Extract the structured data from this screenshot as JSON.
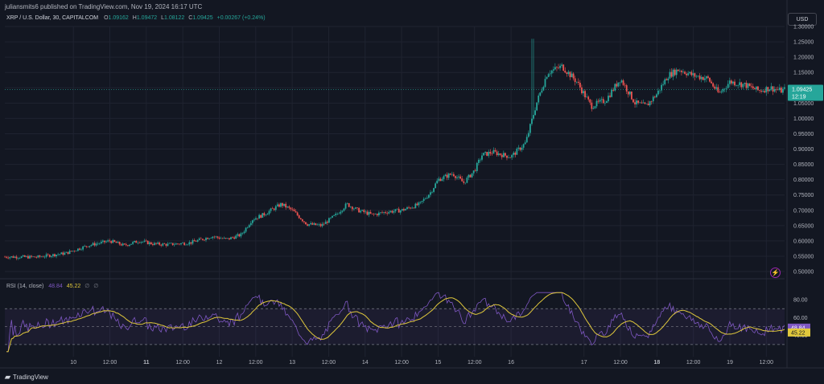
{
  "header": {
    "published": "juliansmits6 published on TradingView.com, Nov 19, 2024 16:17 UTC",
    "symbol": "XRP / U.S. Dollar, 30, CAPITALCOM",
    "open_label": "O",
    "open": "1.09162",
    "high_label": "H",
    "high": "1.09472",
    "low_label": "L",
    "low": "1.08122",
    "close_label": "C",
    "close": "1.09425",
    "change": "+0.00267 (+0.24%)",
    "currency": "USD"
  },
  "rsi": {
    "label": "RSI (14, close)",
    "value": "48.84",
    "ma_value": "45.22",
    "placeholder1": "∅",
    "placeholder2": "∅"
  },
  "footer": {
    "brand": "TradingView"
  },
  "icons": {
    "brand_icon": "tradingview-logo-icon",
    "flash_icon": "lightning-icon"
  },
  "colors": {
    "up": "#26a69a",
    "down": "#ef5350",
    "rsi": "#7e57c2",
    "rsi_ma": "#e0c83c",
    "price_tag": "#26a69a"
  },
  "chart_data": [
    {
      "type": "candlestick",
      "title": "",
      "ylim": [
        0.5,
        1.3
      ],
      "y_ticks": [
        "1.30000",
        "1.25000",
        "1.20000",
        "1.15000",
        "1.10000",
        "1.05000",
        "1.00000",
        "0.95000",
        "0.90000",
        "0.85000",
        "0.80000",
        "0.75000",
        "0.70000",
        "0.65000",
        "0.60000",
        "0.55000",
        "0.50000"
      ],
      "x_ticks": [
        {
          "label": "10",
          "t": 1
        },
        {
          "label": "12:00",
          "t": 1.5
        },
        {
          "label": "11",
          "t": 2
        },
        {
          "label": "12:00",
          "t": 2.5
        },
        {
          "label": "12",
          "t": 3
        },
        {
          "label": "12:00",
          "t": 3.5
        },
        {
          "label": "13",
          "t": 4
        },
        {
          "label": "12:00",
          "t": 4.5
        },
        {
          "label": "14",
          "t": 5
        },
        {
          "label": "12:00",
          "t": 5.5
        },
        {
          "label": "15",
          "t": 6
        },
        {
          "label": "12:00",
          "t": 6.5
        },
        {
          "label": "16",
          "t": 7
        },
        {
          "label": "17",
          "t": 8
        },
        {
          "label": "12:00",
          "t": 8.5
        },
        {
          "label": "18",
          "t": 9
        },
        {
          "label": "12:00",
          "t": 9.5
        },
        {
          "label": "19",
          "t": 10
        },
        {
          "label": "12:00",
          "t": 10.5
        }
      ],
      "t_range": [
        0.06,
        10.75
      ],
      "bold_ticks": [
        "11",
        "18"
      ],
      "last_price": "1.09425",
      "countdown": "12:19",
      "path": [
        [
          0.06,
          0.548
        ],
        [
          0.5,
          0.547
        ],
        [
          0.9,
          0.56
        ],
        [
          1.2,
          0.585
        ],
        [
          1.5,
          0.6
        ],
        [
          1.7,
          0.585
        ],
        [
          1.9,
          0.6
        ],
        [
          2.1,
          0.59
        ],
        [
          2.3,
          0.588
        ],
        [
          2.6,
          0.594
        ],
        [
          2.9,
          0.615
        ],
        [
          3.1,
          0.605
        ],
        [
          3.3,
          0.62
        ],
        [
          3.45,
          0.67
        ],
        [
          3.6,
          0.685
        ],
        [
          3.85,
          0.72
        ],
        [
          4.0,
          0.7
        ],
        [
          4.2,
          0.655
        ],
        [
          4.4,
          0.65
        ],
        [
          4.6,
          0.685
        ],
        [
          4.75,
          0.72
        ],
        [
          4.9,
          0.7
        ],
        [
          5.1,
          0.685
        ],
        [
          5.3,
          0.695
        ],
        [
          5.5,
          0.7
        ],
        [
          5.75,
          0.72
        ],
        [
          5.9,
          0.76
        ],
        [
          6.0,
          0.8
        ],
        [
          6.2,
          0.82
        ],
        [
          6.35,
          0.79
        ],
        [
          6.5,
          0.83
        ],
        [
          6.6,
          0.88
        ],
        [
          6.75,
          0.89
        ],
        [
          6.9,
          0.88
        ],
        [
          7.0,
          0.875
        ],
        [
          7.2,
          0.92
        ],
        [
          7.35,
          1.05
        ],
        [
          7.5,
          1.15
        ],
        [
          7.7,
          1.17
        ],
        [
          7.9,
          1.12
        ],
        [
          8.1,
          1.04
        ],
        [
          8.3,
          1.06
        ],
        [
          8.5,
          1.13
        ],
        [
          8.7,
          1.05
        ],
        [
          8.85,
          1.04
        ],
        [
          9.0,
          1.08
        ],
        [
          9.15,
          1.14
        ],
        [
          9.3,
          1.16
        ],
        [
          9.5,
          1.14
        ],
        [
          9.7,
          1.13
        ],
        [
          9.85,
          1.08
        ],
        [
          10.0,
          1.12
        ],
        [
          10.2,
          1.11
        ],
        [
          10.4,
          1.09
        ],
        [
          10.55,
          1.1
        ],
        [
          10.7,
          1.09
        ],
        [
          10.75,
          1.094
        ]
      ]
    },
    {
      "type": "line",
      "series": [
        {
          "name": "RSI"
        },
        {
          "name": "MA"
        }
      ],
      "ylim": [
        20,
        90
      ],
      "y_ticks": [
        "80.00",
        "60.00",
        "40.00"
      ],
      "bands": [
        70,
        50,
        30
      ],
      "rsi_last": 48.84,
      "ma_last": 45.22
    }
  ]
}
